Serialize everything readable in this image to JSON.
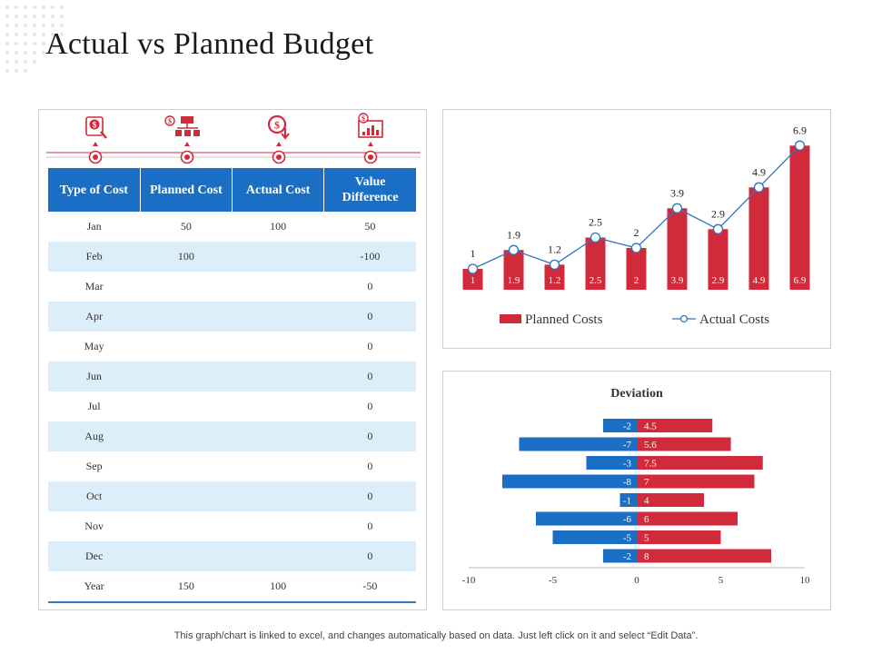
{
  "page": {
    "title": "Actual vs Planned Budget"
  },
  "icons": [
    "money-bag-icon",
    "money-flow-icon",
    "cost-down-icon",
    "budget-chart-icon"
  ],
  "table": {
    "headers": [
      "Type of Cost",
      "Planned Cost",
      "Actual Cost",
      "Value Difference"
    ],
    "rows": [
      [
        "Jan",
        "50",
        "100",
        "50"
      ],
      [
        "Feb",
        "100",
        "",
        "-100"
      ],
      [
        "Mar",
        "",
        "",
        "0"
      ],
      [
        "Apr",
        "",
        "",
        "0"
      ],
      [
        "May",
        "",
        "",
        "0"
      ],
      [
        "Jun",
        "",
        "",
        "0"
      ],
      [
        "Jul",
        "",
        "",
        "0"
      ],
      [
        "Aug",
        "",
        "",
        "0"
      ],
      [
        "Sep",
        "",
        "",
        "0"
      ],
      [
        "Oct",
        "",
        "",
        "0"
      ],
      [
        "Nov",
        "",
        "",
        "0"
      ],
      [
        "Dec",
        "",
        "",
        "0"
      ],
      [
        "Year",
        "150",
        "100",
        "-50"
      ]
    ]
  },
  "chart_data": [
    {
      "type": "bar",
      "title": "",
      "series": [
        {
          "name": "Planned Costs",
          "type": "bar",
          "color": "#d12b3b",
          "values": [
            1,
            1.9,
            1.2,
            2.5,
            2,
            3.9,
            2.9,
            4.9,
            6.9
          ]
        },
        {
          "name": "Actual Costs",
          "type": "line",
          "color": "#2f74c0",
          "values": [
            1,
            1.9,
            1.2,
            2.5,
            2,
            3.9,
            2.9,
            4.9,
            6.9
          ]
        }
      ],
      "legend": "bottom",
      "ylim": [
        0,
        8
      ]
    },
    {
      "type": "bar",
      "orientation": "horizontal",
      "title": "Deviation",
      "series": [
        {
          "name": "negative",
          "color": "#1a6fc4",
          "values": [
            -2,
            -7,
            -3,
            -8,
            -1,
            -6,
            -5,
            -2
          ]
        },
        {
          "name": "positive",
          "color": "#d12b3b",
          "values": [
            4.5,
            5.6,
            7.5,
            7,
            4,
            6,
            5,
            8
          ]
        }
      ],
      "xlim": [
        -10,
        10
      ],
      "xticks": [
        -10,
        -5,
        0,
        5,
        10
      ]
    }
  ],
  "footer": {
    "note": "This graph/chart is linked to excel,  and changes automatically based on data. Just left click on it and select “Edit Data”."
  }
}
